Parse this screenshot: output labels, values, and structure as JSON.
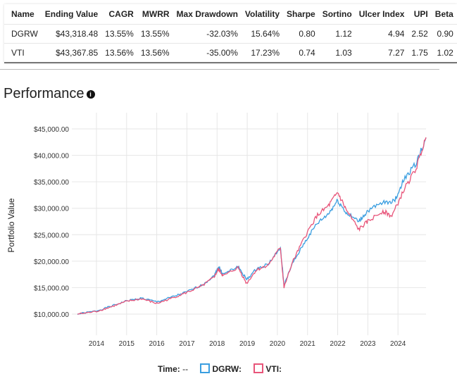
{
  "table": {
    "headers": [
      "Name",
      "Ending Value",
      "CAGR",
      "MWRR",
      "Max Drawdown",
      "Volatility",
      "Sharpe",
      "Sortino",
      "Ulcer Index",
      "UPI",
      "Beta"
    ],
    "rows": [
      [
        "DGRW",
        "$43,318.48",
        "13.55%",
        "13.55%",
        "-32.03%",
        "15.64%",
        "0.80",
        "1.12",
        "4.94",
        "2.52",
        "0.90"
      ],
      [
        "VTI",
        "$43,367.85",
        "13.56%",
        "13.56%",
        "-35.00%",
        "17.23%",
        "0.74",
        "1.03",
        "7.27",
        "1.75",
        "1.02"
      ]
    ]
  },
  "section_title": "Performance",
  "info_icon": "info-icon",
  "legend": {
    "time_label": "Time:",
    "time_value": "--",
    "dgrw_label": "DGRW:",
    "vti_label": "VTI:"
  },
  "chart_data": {
    "type": "line",
    "ylabel": "Portfolio Value",
    "xlim": [
      2013.37,
      2024.93
    ],
    "ylim": [
      10000,
      45000
    ],
    "grid": true,
    "legend": "bottom",
    "yticks": [
      "$10,000.00",
      "$15,000.00",
      "$20,000.00",
      "$25,000.00",
      "$30,000.00",
      "$35,000.00",
      "$40,000.00",
      "$45,000.00"
    ],
    "xticks": [
      "2014",
      "2015",
      "2016",
      "2017",
      "2018",
      "2019",
      "2020",
      "2021",
      "2022",
      "2023",
      "2024"
    ],
    "series": [
      {
        "name": "DGRW",
        "color": "#3a9ee0",
        "points": [
          [
            2013.37,
            10000
          ],
          [
            2014,
            10600
          ],
          [
            2014.5,
            11500
          ],
          [
            2015,
            12500
          ],
          [
            2015.5,
            13000
          ],
          [
            2016,
            12300
          ],
          [
            2016.5,
            13200
          ],
          [
            2017,
            14200
          ],
          [
            2017.5,
            15500
          ],
          [
            2017.9,
            17200
          ],
          [
            2018.05,
            19000
          ],
          [
            2018.2,
            17500
          ],
          [
            2018.7,
            19000
          ],
          [
            2018.98,
            16500
          ],
          [
            2019.3,
            18500
          ],
          [
            2019.7,
            19500
          ],
          [
            2020.1,
            22500
          ],
          [
            2020.22,
            15500
          ],
          [
            2020.5,
            19500
          ],
          [
            2020.9,
            23500
          ],
          [
            2021.3,
            27000
          ],
          [
            2021.7,
            29000
          ],
          [
            2022.0,
            31500
          ],
          [
            2022.3,
            29000
          ],
          [
            2022.7,
            27500
          ],
          [
            2023.0,
            29500
          ],
          [
            2023.5,
            31000
          ],
          [
            2023.9,
            31500
          ],
          [
            2024.2,
            35500
          ],
          [
            2024.6,
            38500
          ],
          [
            2024.93,
            43300
          ]
        ]
      },
      {
        "name": "VTI",
        "color": "#e8557a",
        "points": [
          [
            2013.37,
            10000
          ],
          [
            2014,
            10500
          ],
          [
            2014.5,
            11400
          ],
          [
            2015,
            12400
          ],
          [
            2015.5,
            12900
          ],
          [
            2016,
            12000
          ],
          [
            2016.5,
            13000
          ],
          [
            2017,
            14100
          ],
          [
            2017.5,
            15300
          ],
          [
            2017.9,
            17000
          ],
          [
            2018.05,
            18500
          ],
          [
            2018.2,
            17200
          ],
          [
            2018.7,
            18800
          ],
          [
            2018.98,
            15800
          ],
          [
            2019.3,
            18300
          ],
          [
            2019.7,
            19300
          ],
          [
            2020.1,
            22600
          ],
          [
            2020.22,
            15000
          ],
          [
            2020.5,
            19800
          ],
          [
            2020.9,
            24500
          ],
          [
            2021.3,
            28500
          ],
          [
            2021.7,
            30500
          ],
          [
            2022.0,
            33000
          ],
          [
            2022.3,
            29500
          ],
          [
            2022.7,
            26000
          ],
          [
            2023.0,
            27500
          ],
          [
            2023.5,
            29500
          ],
          [
            2023.8,
            28500
          ],
          [
            2024.2,
            33500
          ],
          [
            2024.6,
            37500
          ],
          [
            2024.93,
            43400
          ]
        ]
      }
    ]
  }
}
